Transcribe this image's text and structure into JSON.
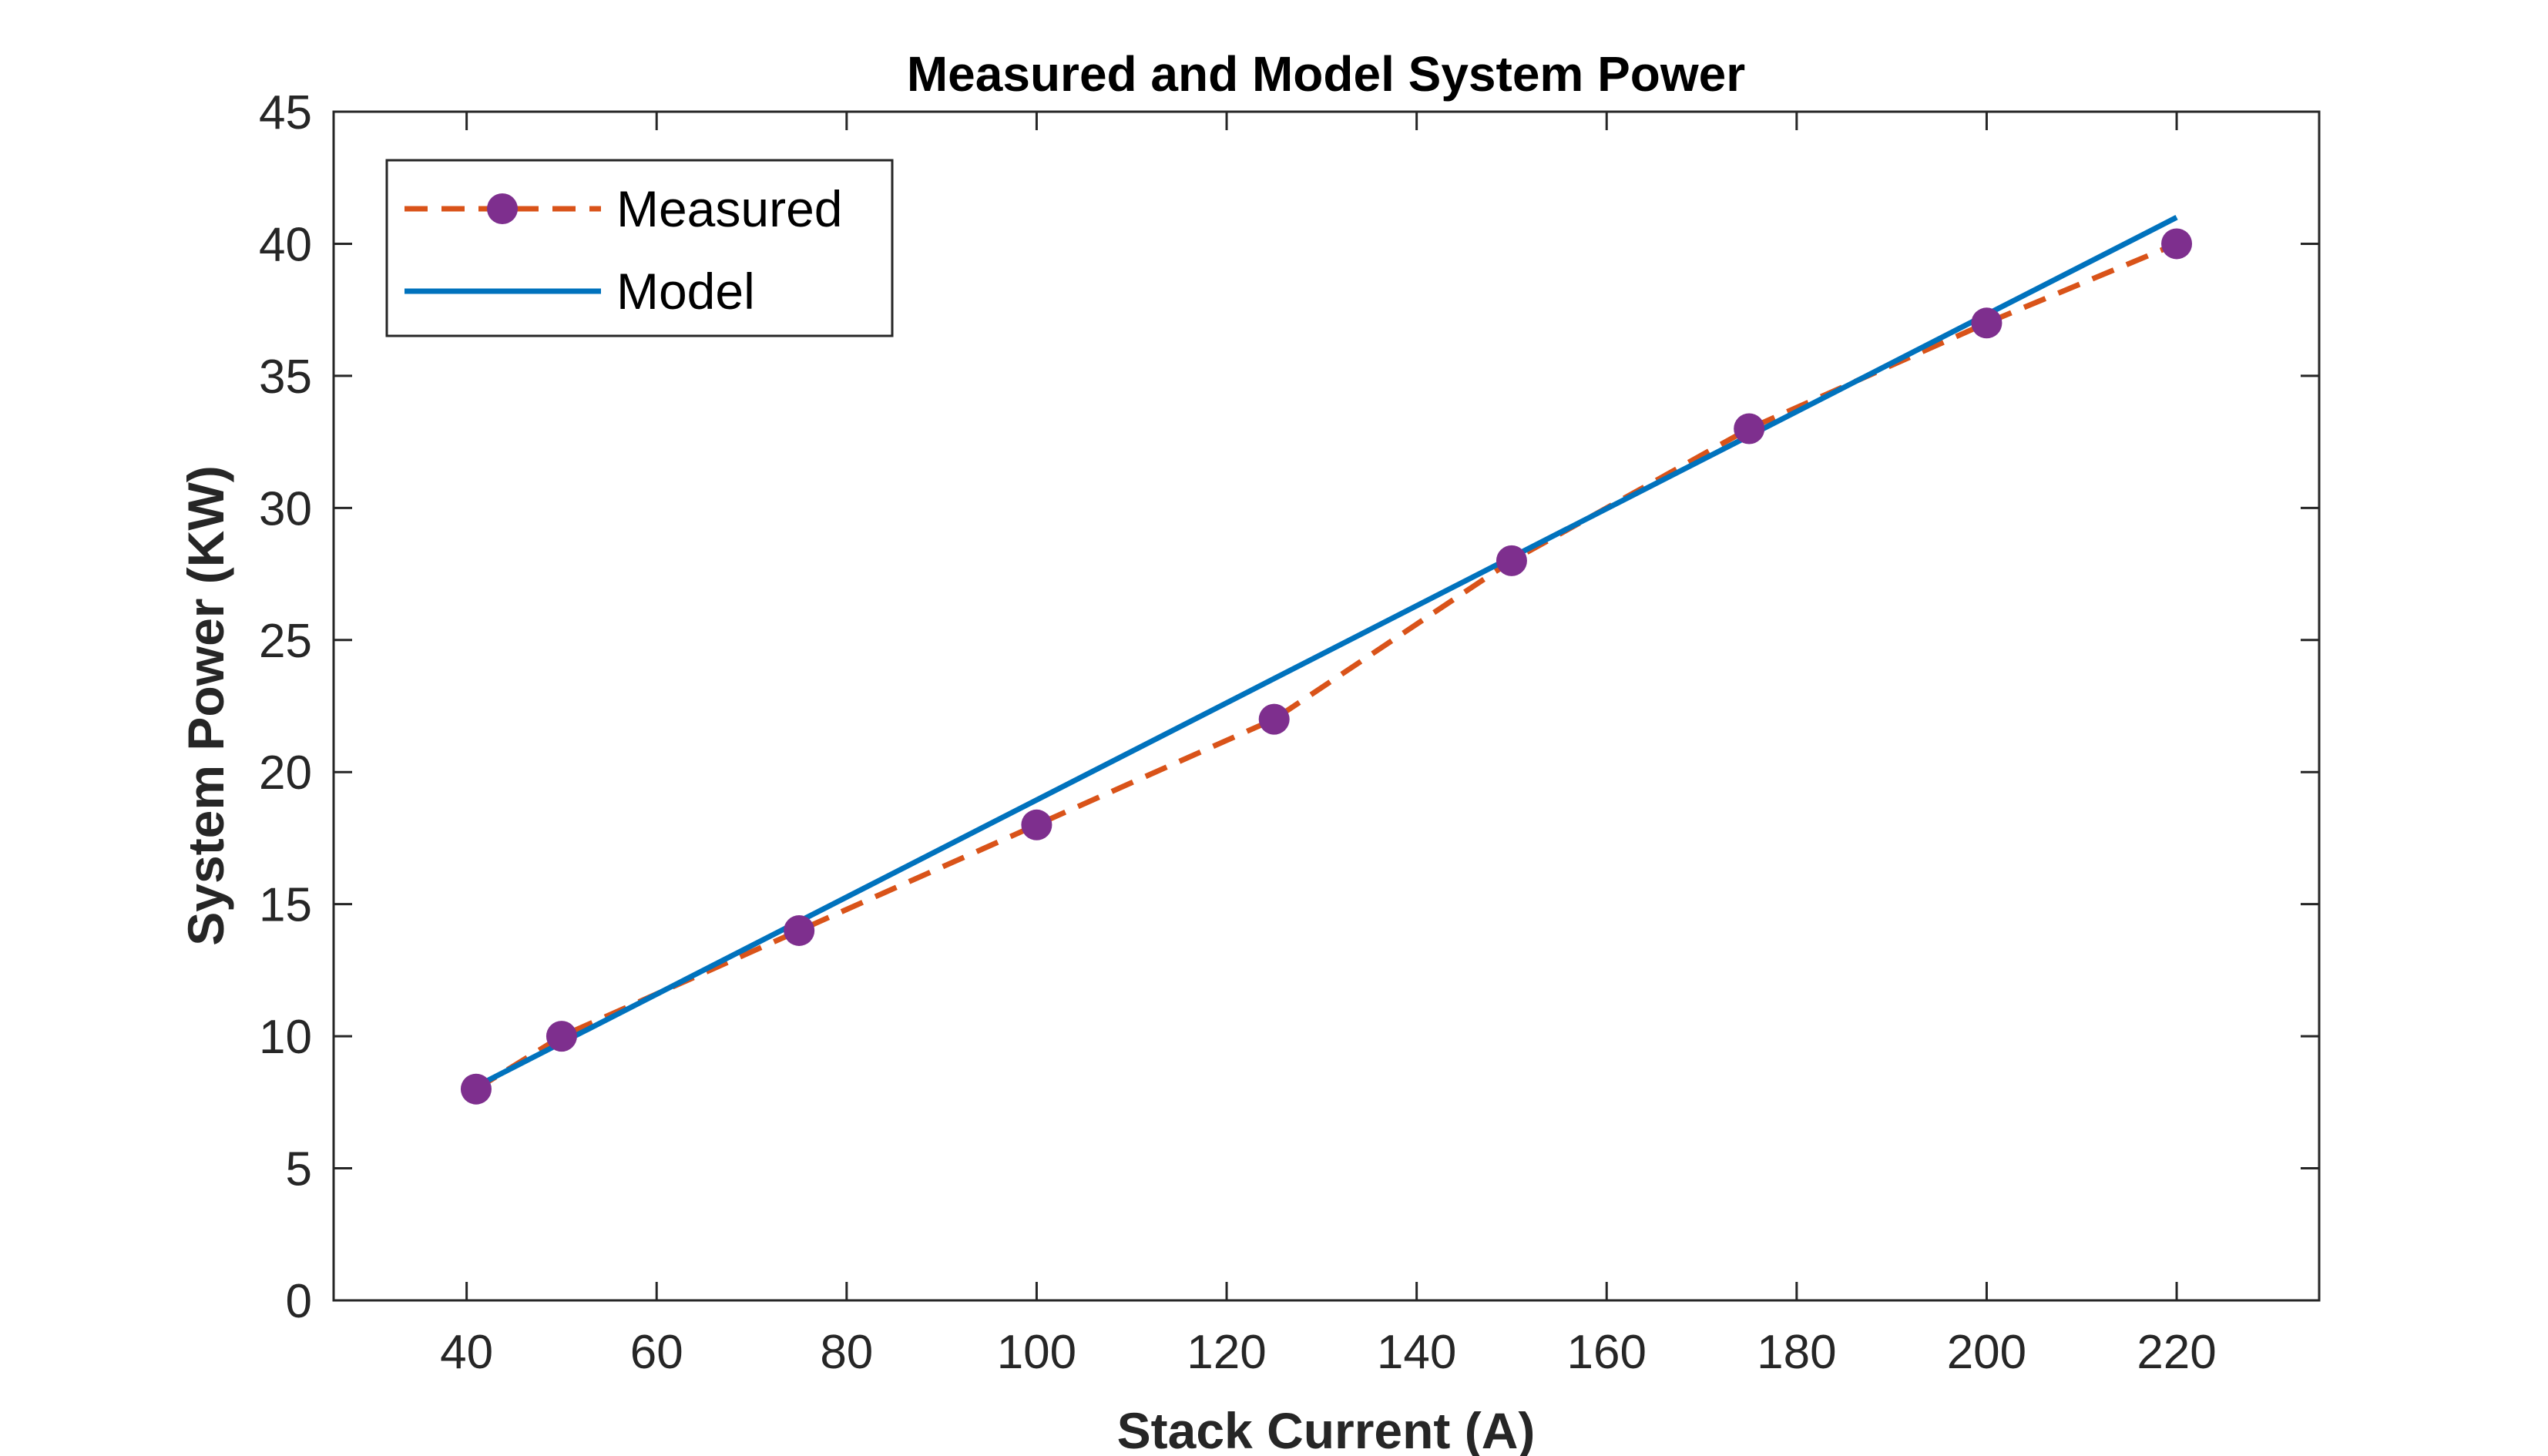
{
  "chart_data": {
    "type": "line",
    "title": "Measured and Model System Power",
    "xlabel": "Stack Current (A)",
    "ylabel": "System Power (KW)",
    "xlim": [
      26,
      235
    ],
    "ylim": [
      0,
      45
    ],
    "xticks": [
      40,
      60,
      80,
      100,
      120,
      140,
      160,
      180,
      200,
      220
    ],
    "yticks": [
      0,
      5,
      10,
      15,
      20,
      25,
      30,
      35,
      40,
      45
    ],
    "grid": false,
    "legend_position": "top-left",
    "series": [
      {
        "name": "Measured",
        "style": "dashed-with-markers",
        "line_color": "#D95319",
        "marker_color": "#7E2F8E",
        "x": [
          41,
          50,
          75,
          100,
          125,
          150,
          175,
          200,
          220
        ],
        "y": [
          8,
          10,
          14,
          18,
          22,
          28,
          33,
          37,
          40
        ]
      },
      {
        "name": "Model",
        "style": "solid",
        "line_color": "#0072BD",
        "x": [
          41,
          220
        ],
        "y": [
          8.1,
          41.0
        ]
      }
    ]
  }
}
